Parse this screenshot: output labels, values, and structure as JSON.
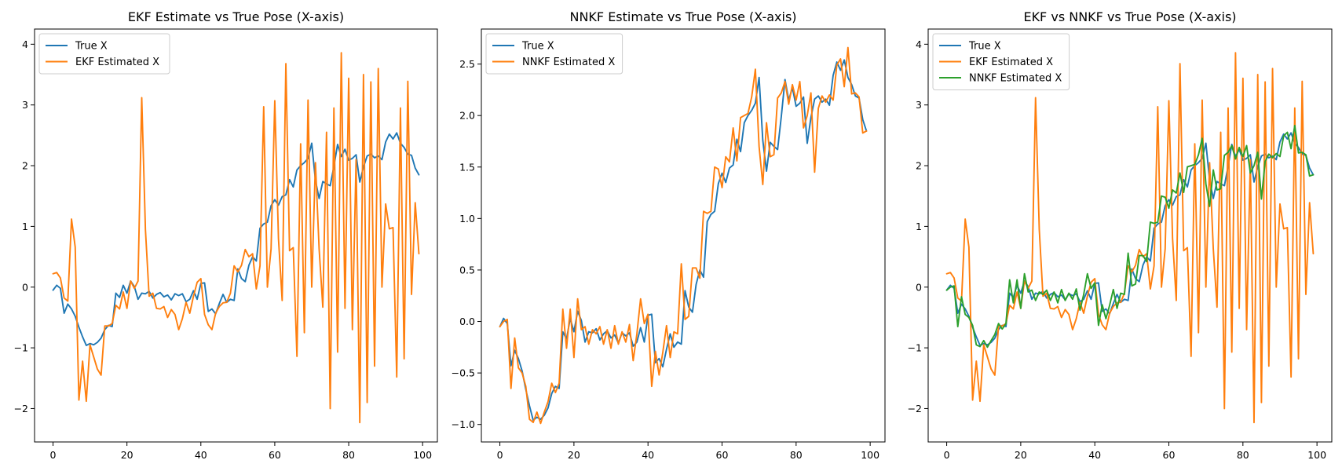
{
  "colors": {
    "true_x": "#1f77b4",
    "ekf": "#ff7f0e",
    "nnkf": "#2ca02c"
  },
  "chart_data": [
    {
      "type": "line",
      "title": "EKF Estimate vs True Pose (X-axis)",
      "xlabel": "",
      "ylabel": "",
      "xlim": [
        -5,
        104
      ],
      "ylim": [
        -2.55,
        4.25
      ],
      "xticks": [
        0,
        20,
        40,
        60,
        80,
        100
      ],
      "yticks": [
        -2,
        -1,
        0,
        1,
        2,
        3,
        4
      ],
      "grid": false,
      "legend_position": "top-left",
      "series": [
        {
          "name": "True X",
          "color_key": "true_x",
          "values": [
            -0.05,
            0.03,
            -0.02,
            -0.43,
            -0.28,
            -0.36,
            -0.48,
            -0.66,
            -0.82,
            -0.96,
            -0.93,
            -0.95,
            -0.91,
            -0.84,
            -0.7,
            -0.63,
            -0.65,
            -0.1,
            -0.17,
            0.03,
            -0.1,
            0.1,
            0.01,
            -0.2,
            -0.1,
            -0.11,
            -0.07,
            -0.18,
            -0.12,
            -0.09,
            -0.16,
            -0.13,
            -0.21,
            -0.11,
            -0.14,
            -0.11,
            -0.24,
            -0.2,
            -0.06,
            -0.2,
            0.06,
            0.07,
            -0.4,
            -0.36,
            -0.44,
            -0.27,
            -0.12,
            -0.25,
            -0.2,
            -0.22,
            0.3,
            0.14,
            0.09,
            0.36,
            0.5,
            0.43,
            0.97,
            1.04,
            1.07,
            1.34,
            1.44,
            1.35,
            1.49,
            1.52,
            1.77,
            1.65,
            1.93,
            2.0,
            2.05,
            2.12,
            2.37,
            1.76,
            1.46,
            1.74,
            1.7,
            1.67,
            1.99,
            2.35,
            2.15,
            2.27,
            2.09,
            2.12,
            2.18,
            1.73,
            1.98,
            2.16,
            2.19,
            2.13,
            2.16,
            2.1,
            2.39,
            2.52,
            2.44,
            2.54,
            2.37,
            2.3,
            2.19,
            2.17,
            1.96,
            1.85
          ]
        },
        {
          "name": "EKF Estimated X",
          "color_key": "ekf",
          "values": [
            0.22,
            0.24,
            0.15,
            -0.18,
            -0.23,
            1.12,
            0.66,
            -1.86,
            -1.22,
            -1.88,
            -0.95,
            -1.15,
            -1.35,
            -1.45,
            -0.64,
            -0.64,
            -0.6,
            -0.3,
            -0.36,
            -0.08,
            -0.35,
            0.1,
            -0.02,
            0.1,
            3.12,
            0.95,
            -0.15,
            -0.1,
            -0.35,
            -0.36,
            -0.32,
            -0.5,
            -0.37,
            -0.45,
            -0.7,
            -0.52,
            -0.25,
            -0.43,
            -0.15,
            0.08,
            0.14,
            -0.45,
            -0.62,
            -0.7,
            -0.43,
            -0.32,
            -0.26,
            -0.25,
            -0.1,
            0.35,
            0.25,
            0.36,
            0.62,
            0.5,
            0.55,
            -0.03,
            0.35,
            2.97,
            0.0,
            0.63,
            3.07,
            0.8,
            -0.22,
            3.68,
            0.6,
            0.65,
            -1.14,
            2.36,
            -0.75,
            3.08,
            0.0,
            2.05,
            0.63,
            -0.33,
            2.55,
            -2.0,
            2.95,
            -1.07,
            3.86,
            -0.35,
            3.44,
            -0.7,
            2.1,
            -2.23,
            3.5,
            -1.9,
            3.38,
            -1.3,
            3.6,
            0.0,
            1.37,
            0.96,
            0.98,
            -1.48,
            2.95,
            -1.18,
            3.39,
            -0.12,
            1.39,
            0.55
          ]
        }
      ]
    },
    {
      "type": "line",
      "title": "NNKF Estimate vs True Pose (X-axis)",
      "xlabel": "",
      "ylabel": "",
      "xlim": [
        -5,
        104
      ],
      "ylim": [
        -1.17,
        2.84
      ],
      "xticks": [
        0,
        20,
        40,
        60,
        80,
        100
      ],
      "yticks": [
        -1.0,
        -0.5,
        0.0,
        0.5,
        1.0,
        1.5,
        2.0,
        2.5
      ],
      "ytick_labels": [
        "−1.0",
        "−0.5",
        "0.0",
        "0.5",
        "1.0",
        "1.5",
        "2.0",
        "2.5"
      ],
      "grid": false,
      "legend_position": "top-left",
      "series": [
        {
          "name": "True X",
          "color_key": "true_x",
          "values": [
            -0.05,
            0.03,
            -0.02,
            -0.43,
            -0.28,
            -0.36,
            -0.48,
            -0.66,
            -0.82,
            -0.96,
            -0.93,
            -0.95,
            -0.91,
            -0.84,
            -0.7,
            -0.63,
            -0.65,
            -0.1,
            -0.17,
            0.03,
            -0.1,
            0.1,
            0.01,
            -0.2,
            -0.1,
            -0.11,
            -0.07,
            -0.18,
            -0.12,
            -0.09,
            -0.16,
            -0.13,
            -0.21,
            -0.11,
            -0.14,
            -0.11,
            -0.24,
            -0.2,
            -0.06,
            -0.2,
            0.06,
            0.07,
            -0.4,
            -0.36,
            -0.44,
            -0.27,
            -0.12,
            -0.25,
            -0.2,
            -0.22,
            0.3,
            0.14,
            0.09,
            0.36,
            0.5,
            0.43,
            0.97,
            1.04,
            1.07,
            1.34,
            1.44,
            1.35,
            1.49,
            1.52,
            1.77,
            1.65,
            1.93,
            2.0,
            2.05,
            2.12,
            2.37,
            1.76,
            1.46,
            1.74,
            1.7,
            1.67,
            1.99,
            2.35,
            2.15,
            2.27,
            2.09,
            2.12,
            2.18,
            1.73,
            1.98,
            2.16,
            2.19,
            2.13,
            2.16,
            2.1,
            2.39,
            2.52,
            2.44,
            2.54,
            2.37,
            2.3,
            2.19,
            2.17,
            1.96,
            1.85
          ]
        },
        {
          "name": "NNKF Estimated X",
          "color_key": "ekf",
          "values": [
            -0.05,
            0.0,
            0.02,
            -0.65,
            -0.16,
            -0.45,
            -0.5,
            -0.63,
            -0.95,
            -0.98,
            -0.88,
            -0.99,
            -0.88,
            -0.78,
            -0.6,
            -0.69,
            -0.6,
            0.12,
            -0.26,
            0.12,
            -0.35,
            0.22,
            -0.08,
            -0.05,
            -0.22,
            -0.08,
            -0.12,
            -0.05,
            -0.22,
            -0.08,
            -0.26,
            -0.04,
            -0.22,
            -0.1,
            -0.2,
            -0.03,
            -0.38,
            -0.12,
            0.22,
            -0.02,
            0.07,
            -0.63,
            -0.29,
            -0.52,
            -0.3,
            -0.04,
            -0.35,
            -0.1,
            -0.12,
            0.56,
            0.02,
            0.05,
            0.52,
            0.52,
            0.42,
            1.07,
            1.05,
            1.07,
            1.5,
            1.48,
            1.3,
            1.6,
            1.55,
            1.88,
            1.56,
            1.98,
            2.0,
            2.02,
            2.18,
            2.45,
            1.7,
            1.33,
            1.93,
            1.6,
            1.62,
            2.17,
            2.22,
            2.33,
            2.11,
            2.3,
            2.15,
            2.33,
            1.88,
            2.0,
            2.22,
            1.45,
            2.07,
            2.19,
            2.13,
            2.2,
            2.15,
            2.49,
            2.55,
            2.28,
            2.66,
            2.21,
            2.22,
            2.18,
            1.83,
            1.85
          ]
        }
      ]
    },
    {
      "type": "line",
      "title": "EKF vs NNKF vs True Pose (X-axis)",
      "xlabel": "",
      "ylabel": "",
      "xlim": [
        -5,
        104
      ],
      "ylim": [
        -2.55,
        4.25
      ],
      "xticks": [
        0,
        20,
        40,
        60,
        80,
        100
      ],
      "yticks": [
        -2,
        -1,
        0,
        1,
        2,
        3,
        4
      ],
      "grid": false,
      "legend_position": "top-left",
      "series": [
        {
          "name": "True X",
          "color_key": "true_x",
          "values": [
            -0.05,
            0.03,
            -0.02,
            -0.43,
            -0.28,
            -0.36,
            -0.48,
            -0.66,
            -0.82,
            -0.96,
            -0.93,
            -0.95,
            -0.91,
            -0.84,
            -0.7,
            -0.63,
            -0.65,
            -0.1,
            -0.17,
            0.03,
            -0.1,
            0.1,
            0.01,
            -0.2,
            -0.1,
            -0.11,
            -0.07,
            -0.18,
            -0.12,
            -0.09,
            -0.16,
            -0.13,
            -0.21,
            -0.11,
            -0.14,
            -0.11,
            -0.24,
            -0.2,
            -0.06,
            -0.2,
            0.06,
            0.07,
            -0.4,
            -0.36,
            -0.44,
            -0.27,
            -0.12,
            -0.25,
            -0.2,
            -0.22,
            0.3,
            0.14,
            0.09,
            0.36,
            0.5,
            0.43,
            0.97,
            1.04,
            1.07,
            1.34,
            1.44,
            1.35,
            1.49,
            1.52,
            1.77,
            1.65,
            1.93,
            2.0,
            2.05,
            2.12,
            2.37,
            1.76,
            1.46,
            1.74,
            1.7,
            1.67,
            1.99,
            2.35,
            2.15,
            2.27,
            2.09,
            2.12,
            2.18,
            1.73,
            1.98,
            2.16,
            2.19,
            2.13,
            2.16,
            2.1,
            2.39,
            2.52,
            2.44,
            2.54,
            2.37,
            2.3,
            2.19,
            2.17,
            1.96,
            1.85
          ]
        },
        {
          "name": "EKF Estimated X",
          "color_key": "ekf",
          "values": [
            0.22,
            0.24,
            0.15,
            -0.18,
            -0.23,
            1.12,
            0.66,
            -1.86,
            -1.22,
            -1.88,
            -0.95,
            -1.15,
            -1.35,
            -1.45,
            -0.64,
            -0.64,
            -0.6,
            -0.3,
            -0.36,
            -0.08,
            -0.35,
            0.1,
            -0.02,
            0.1,
            3.12,
            0.95,
            -0.15,
            -0.1,
            -0.35,
            -0.36,
            -0.32,
            -0.5,
            -0.37,
            -0.45,
            -0.7,
            -0.52,
            -0.25,
            -0.43,
            -0.15,
            0.08,
            0.14,
            -0.45,
            -0.62,
            -0.7,
            -0.43,
            -0.32,
            -0.26,
            -0.25,
            -0.1,
            0.35,
            0.25,
            0.36,
            0.62,
            0.5,
            0.55,
            -0.03,
            0.35,
            2.97,
            0.0,
            0.63,
            3.07,
            0.8,
            -0.22,
            3.68,
            0.6,
            0.65,
            -1.14,
            2.36,
            -0.75,
            3.08,
            0.0,
            2.05,
            0.63,
            -0.33,
            2.55,
            -2.0,
            2.95,
            -1.07,
            3.86,
            -0.35,
            3.44,
            -0.7,
            2.1,
            -2.23,
            3.5,
            -1.9,
            3.38,
            -1.3,
            3.6,
            0.0,
            1.37,
            0.96,
            0.98,
            -1.48,
            2.95,
            -1.18,
            3.39,
            -0.12,
            1.39,
            0.55
          ]
        },
        {
          "name": "NNKF Estimated X",
          "color_key": "nnkf",
          "values": [
            -0.05,
            0.0,
            0.02,
            -0.65,
            -0.16,
            -0.45,
            -0.5,
            -0.63,
            -0.95,
            -0.98,
            -0.88,
            -0.99,
            -0.88,
            -0.78,
            -0.6,
            -0.69,
            -0.6,
            0.12,
            -0.26,
            0.12,
            -0.35,
            0.22,
            -0.08,
            -0.05,
            -0.22,
            -0.08,
            -0.12,
            -0.05,
            -0.22,
            -0.08,
            -0.26,
            -0.04,
            -0.22,
            -0.1,
            -0.2,
            -0.03,
            -0.38,
            -0.12,
            0.22,
            -0.02,
            0.07,
            -0.63,
            -0.29,
            -0.52,
            -0.3,
            -0.04,
            -0.35,
            -0.1,
            -0.12,
            0.56,
            0.02,
            0.05,
            0.52,
            0.52,
            0.42,
            1.07,
            1.05,
            1.07,
            1.5,
            1.48,
            1.3,
            1.6,
            1.55,
            1.88,
            1.56,
            1.98,
            2.0,
            2.02,
            2.18,
            2.45,
            1.7,
            1.33,
            1.93,
            1.6,
            1.62,
            2.17,
            2.22,
            2.33,
            2.11,
            2.3,
            2.15,
            2.33,
            1.88,
            2.0,
            2.22,
            1.45,
            2.07,
            2.19,
            2.13,
            2.2,
            2.15,
            2.49,
            2.55,
            2.28,
            2.66,
            2.21,
            2.22,
            2.18,
            1.83,
            1.85
          ]
        }
      ]
    }
  ]
}
